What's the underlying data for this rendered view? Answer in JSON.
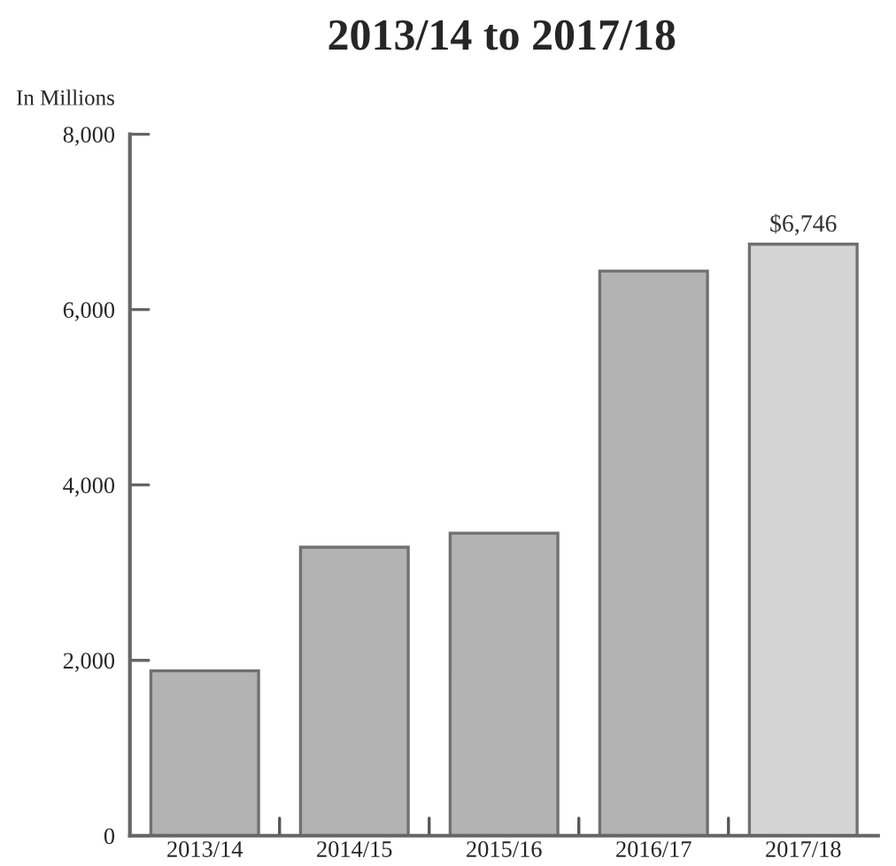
{
  "chart_data": {
    "type": "bar",
    "title": "2013/14 to 2017/18",
    "ylabel": "In Millions",
    "categories": [
      "2013/14",
      "2014/15",
      "2015/16",
      "2016/17",
      "2017/18"
    ],
    "values": [
      1880,
      3290,
      3450,
      6440,
      6746
    ],
    "colors": [
      "#b3b3b3",
      "#b3b3b3",
      "#b3b3b3",
      "#b3b3b3",
      "#d4d4d4"
    ],
    "value_labels": [
      null,
      null,
      null,
      null,
      "$6,746"
    ],
    "ylim": [
      0,
      8000
    ],
    "yticks": [
      0,
      {
        "value": 2000,
        "label": "2,000"
      },
      {
        "value": 4000,
        "label": "4,000"
      },
      {
        "value": 6000,
        "label": "6,000"
      },
      {
        "value": 8000,
        "label": "8,000"
      }
    ],
    "grid": false,
    "legend": false
  }
}
